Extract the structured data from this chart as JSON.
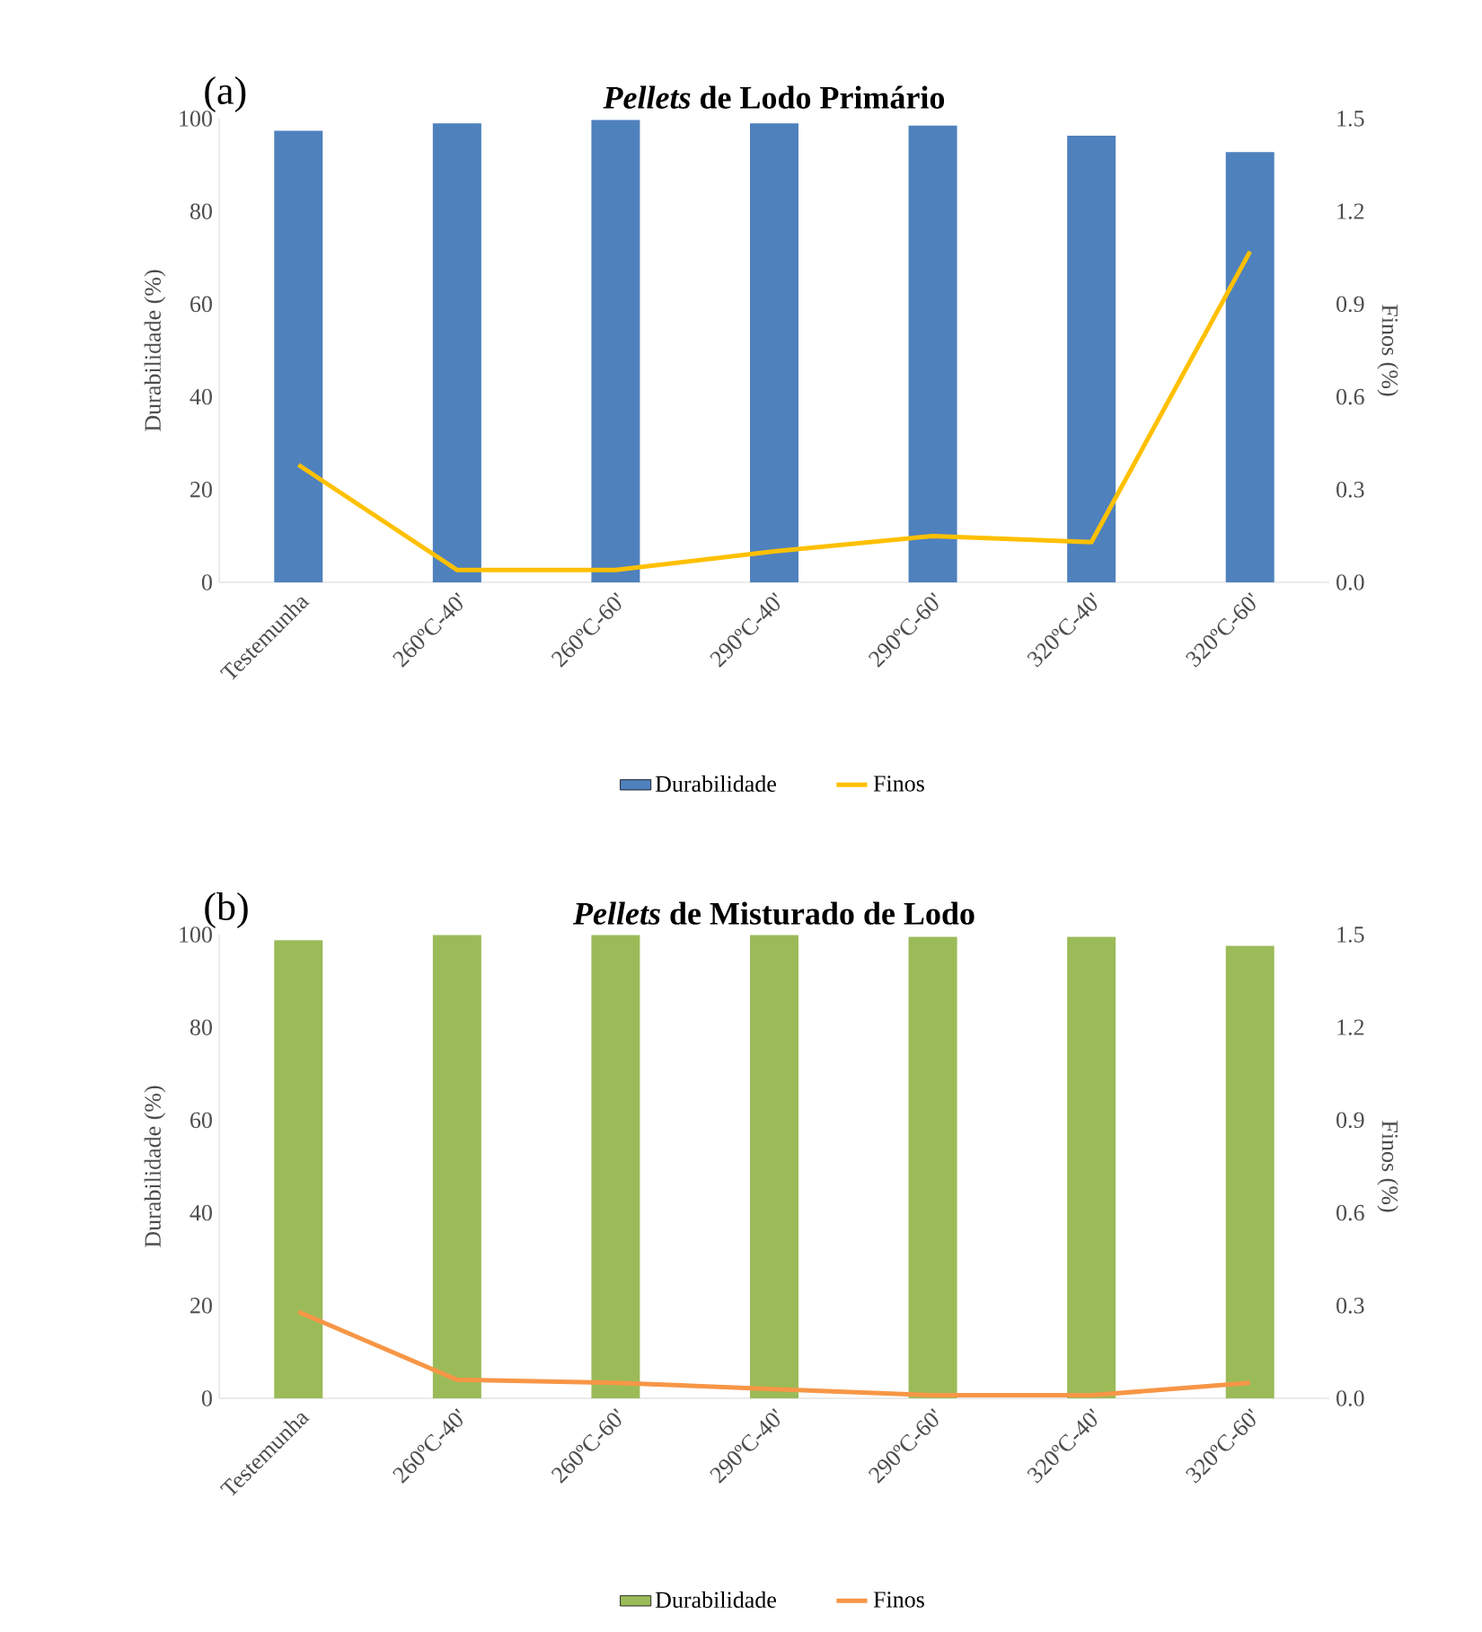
{
  "chart_data": [
    {
      "type": "bar",
      "title": "*Pellets* de Lodo Primário",
      "annotations": [
        "(a)"
      ],
      "ylabel": "Durabilidade  (%)",
      "y2label": "Finos (%)",
      "categories": [
        "Testemunha",
        "260ºC-40'",
        "260ºC-60'",
        "290ºC-40'",
        "290ºC-60'",
        "320ºC-40'",
        "320ºC-60'"
      ],
      "series": [
        {
          "name": "Durabilidade",
          "type": "bar",
          "color": "#4f81bd",
          "values": [
            97.4,
            99.0,
            99.7,
            99.0,
            98.5,
            96.3,
            92.8
          ]
        },
        {
          "name": "Finos",
          "type": "line",
          "axis": "y2",
          "color": "#ffc000",
          "values": [
            0.38,
            0.04,
            0.04,
            0.1,
            0.15,
            0.13,
            1.07
          ]
        }
      ],
      "ylim": [
        0,
        100
      ],
      "yticks": [
        0,
        20,
        40,
        60,
        80,
        100
      ],
      "y2lim": [
        0,
        1.5
      ],
      "y2ticks": [
        {
          "value": 0,
          "label": "0.0"
        },
        {
          "value": 0.3,
          "label": "0.3"
        },
        {
          "value": 0.6,
          "label": "0.6"
        },
        {
          "value": 0.9,
          "label": "0.9"
        },
        {
          "value": 1.2,
          "label": "1.2"
        },
        {
          "value": 1.5,
          "label": "1.5"
        }
      ],
      "legend": "bottom"
    },
    {
      "type": "bar",
      "title": "*Pellets* de Misturado  de Lodo",
      "annotations": [
        "(b)"
      ],
      "ylabel": "Durabilidade  (%)",
      "y2label": "Finos (%)",
      "categories": [
        "Testemunha",
        "260ºC-40'",
        "260ºC-60'",
        "290ºC-40'",
        "290ºC-60'",
        "320ºC-40'",
        "320ºC-60'"
      ],
      "series": [
        {
          "name": "Durabilidade",
          "type": "bar",
          "color": "#9bbb59",
          "values": [
            98.8,
            99.9,
            99.9,
            99.9,
            99.5,
            99.5,
            97.6
          ]
        },
        {
          "name": "Finos",
          "type": "line",
          "axis": "y2",
          "color": "#f79646",
          "values": [
            0.28,
            0.06,
            0.05,
            0.03,
            0.01,
            0.01,
            0.05
          ]
        }
      ],
      "ylim": [
        0,
        100
      ],
      "yticks": [
        0,
        20,
        40,
        60,
        80,
        100
      ],
      "y2lim": [
        0,
        1.5
      ],
      "y2ticks": [
        {
          "value": 0,
          "label": "0.0"
        },
        {
          "value": 0.3,
          "label": "0.3"
        },
        {
          "value": 0.6,
          "label": "0.6"
        },
        {
          "value": 0.9,
          "label": "0.9"
        },
        {
          "value": 1.2,
          "label": "1.2"
        },
        {
          "value": 1.5,
          "label": "1.5"
        }
      ],
      "legend": "bottom"
    }
  ]
}
